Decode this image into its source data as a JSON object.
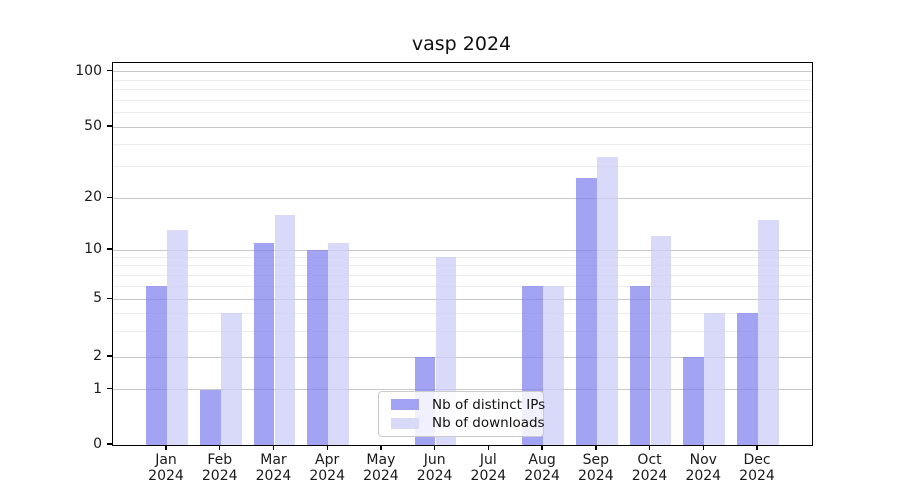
{
  "chart_data": {
    "type": "bar",
    "title": "vasp 2024",
    "categories": [
      "Jan",
      "Feb",
      "Mar",
      "Apr",
      "May",
      "Jun",
      "Jul",
      "Aug",
      "Sep",
      "Oct",
      "Nov",
      "Dec"
    ],
    "category_year": "2024",
    "series": [
      {
        "name": "Nb of distinct IPs",
        "color": "#a3a3f3",
        "fill": "rgba(127,127,240,0.72)",
        "values": [
          6,
          1,
          11,
          10,
          0,
          2,
          0,
          6,
          26,
          6,
          2,
          4
        ]
      },
      {
        "name": "Nb of downloads",
        "color": "#d9d9f8",
        "fill": "rgba(203,203,248,0.72)",
        "values": [
          13,
          4,
          16,
          11,
          0,
          9,
          0,
          6,
          34,
          12,
          4,
          15
        ]
      }
    ],
    "y_axis": {
      "scale": "symlog",
      "ticks": [
        0,
        1,
        2,
        5,
        10,
        20,
        50,
        100
      ],
      "minor_gridlines": [
        3,
        4,
        6,
        7,
        8,
        9,
        30,
        40,
        60,
        70,
        80,
        90
      ],
      "range": [
        0,
        100
      ]
    },
    "x_axis": {
      "tick_count": 12
    },
    "legend": {
      "position": "lower-center-inside"
    },
    "grid": true,
    "colors": {
      "major_grid": "#c8c8c8",
      "minor_grid": "#ececec",
      "spine": "#000000",
      "background": "#ffffff"
    }
  }
}
